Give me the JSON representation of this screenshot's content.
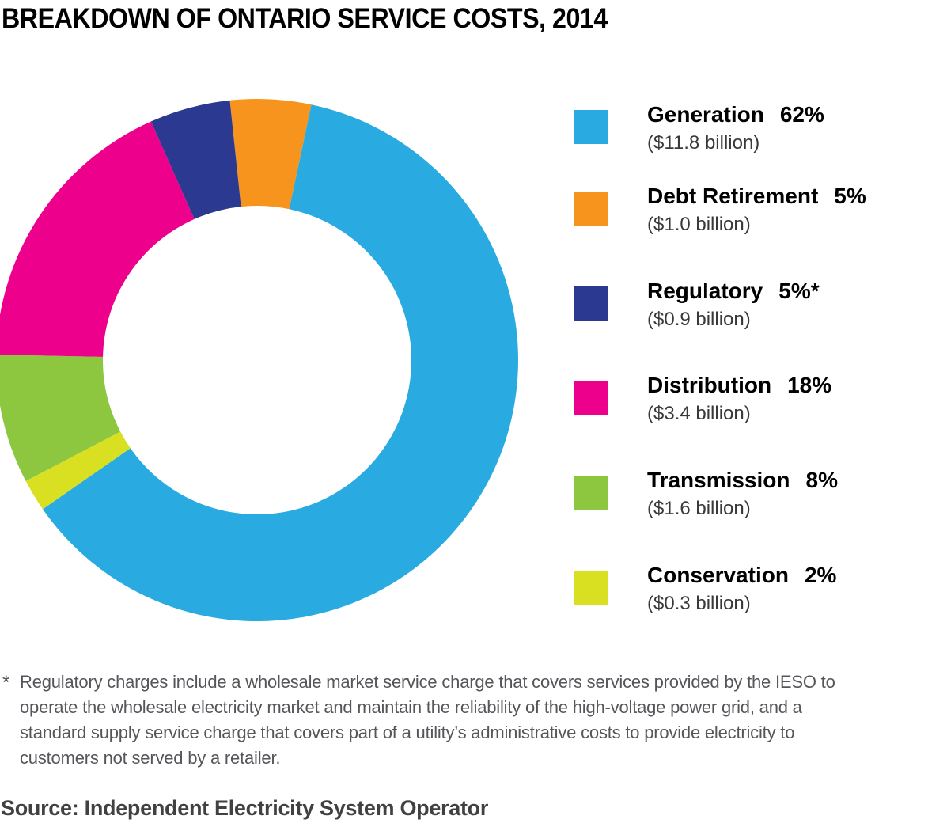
{
  "title": "BREAKDOWN OF ONTARIO SERVICE COSTS, 2014",
  "chart_data": {
    "type": "pie",
    "donut": true,
    "title": "BREAKDOWN OF ONTARIO SERVICE COSTS, 2014",
    "legend_position": "right",
    "start_angle_deg": -6,
    "clockwise_segments": [
      {
        "label": "Debt Retirement",
        "percent": 5,
        "amount_billions": 1.0,
        "color": "#F7941E"
      },
      {
        "label": "Generation",
        "percent": 62,
        "amount_billions": 11.8,
        "color": "#29ABE2"
      },
      {
        "label": "Conservation",
        "percent": 2,
        "amount_billions": 0.3,
        "color": "#D9E021"
      },
      {
        "label": "Transmission",
        "percent": 8,
        "amount_billions": 1.6,
        "color": "#8DC63F"
      },
      {
        "label": "Distribution",
        "percent": 18,
        "amount_billions": 3.4,
        "color": "#EC008C"
      },
      {
        "label": "Regulatory",
        "percent": 5,
        "amount_billions": 0.9,
        "color": "#2B3990"
      }
    ]
  },
  "legend": {
    "items": [
      {
        "label": "Generation",
        "pct": "62%",
        "sub": "($11.8 billion)",
        "color": "#29ABE2"
      },
      {
        "label": "Debt Retirement",
        "pct": "5%",
        "sub": "($1.0 billion)",
        "color": "#F7941E"
      },
      {
        "label": "Regulatory",
        "pct": "5%*",
        "sub": "($0.9 billion)",
        "color": "#2B3990"
      },
      {
        "label": "Distribution",
        "pct": "18%",
        "sub": "($3.4 billion)",
        "color": "#EC008C"
      },
      {
        "label": "Transmission",
        "pct": "8%",
        "sub": "($1.6 billion)",
        "color": "#8DC63F"
      },
      {
        "label": "Conservation",
        "pct": "2%",
        "sub": "($0.3 billion)",
        "color": "#D9E021"
      }
    ]
  },
  "footnote": {
    "marker": "*",
    "lines": [
      "Regulatory charges include a wholesale market service charge that covers services provided by the IESO to",
      "operate the wholesale electricity market and maintain the reliability of the high-voltage power grid, and a",
      "standard supply service charge that covers part of a utility’s administrative costs to provide electricity to",
      "customers not served by a retailer."
    ]
  },
  "source": "Source: Independent Electricity System Operator"
}
